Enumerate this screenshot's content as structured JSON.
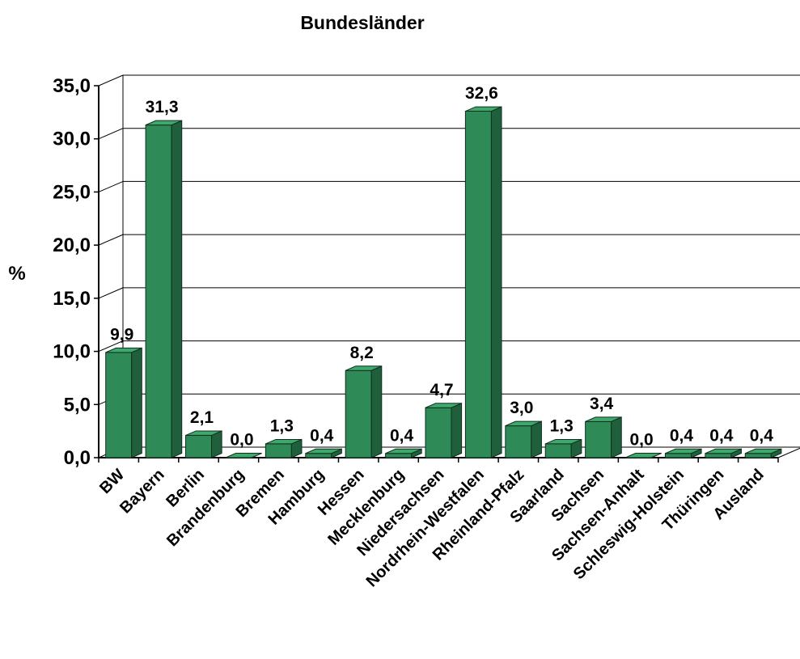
{
  "chart_data": {
    "type": "bar",
    "title": "Bundesländer",
    "xlabel": "",
    "ylabel": "%",
    "ylim": [
      0,
      35
    ],
    "yticks": [
      "0,0",
      "5,0",
      "10,0",
      "15,0",
      "20,0",
      "25,0",
      "30,0",
      "35,0"
    ],
    "grid": true,
    "style": "3d",
    "categories": [
      "BW",
      "Bayern",
      "Berlin",
      "Brandenburg",
      "Bremen",
      "Hamburg",
      "Hessen",
      "Mecklenburg",
      "Niedersachsen",
      "Nordrhein-Westfalen",
      "Rheinland-Pfalz",
      "Saarland",
      "Sachsen",
      "Sachsen-Anhalt",
      "Schleswig-Holstein",
      "Thüringen",
      "Ausland"
    ],
    "values": [
      9.9,
      31.3,
      2.1,
      0.0,
      1.3,
      0.4,
      8.2,
      0.4,
      4.7,
      32.6,
      3.0,
      1.3,
      3.4,
      0.0,
      0.4,
      0.4,
      0.4
    ],
    "data_labels": [
      "9,9",
      "31,3",
      "2,1",
      "0,0",
      "1,3",
      "0,4",
      "8,2",
      "0,4",
      "4,7",
      "32,6",
      "3,0",
      "1,3",
      "3,4",
      "0,0",
      "0,4",
      "0,4",
      "0,4"
    ],
    "colors": {
      "bar_front": "#2e8b57",
      "bar_top": "#3fa86c",
      "bar_side": "#1f5f3b",
      "edge": "#0f2f1d",
      "grid": "#000000"
    }
  }
}
